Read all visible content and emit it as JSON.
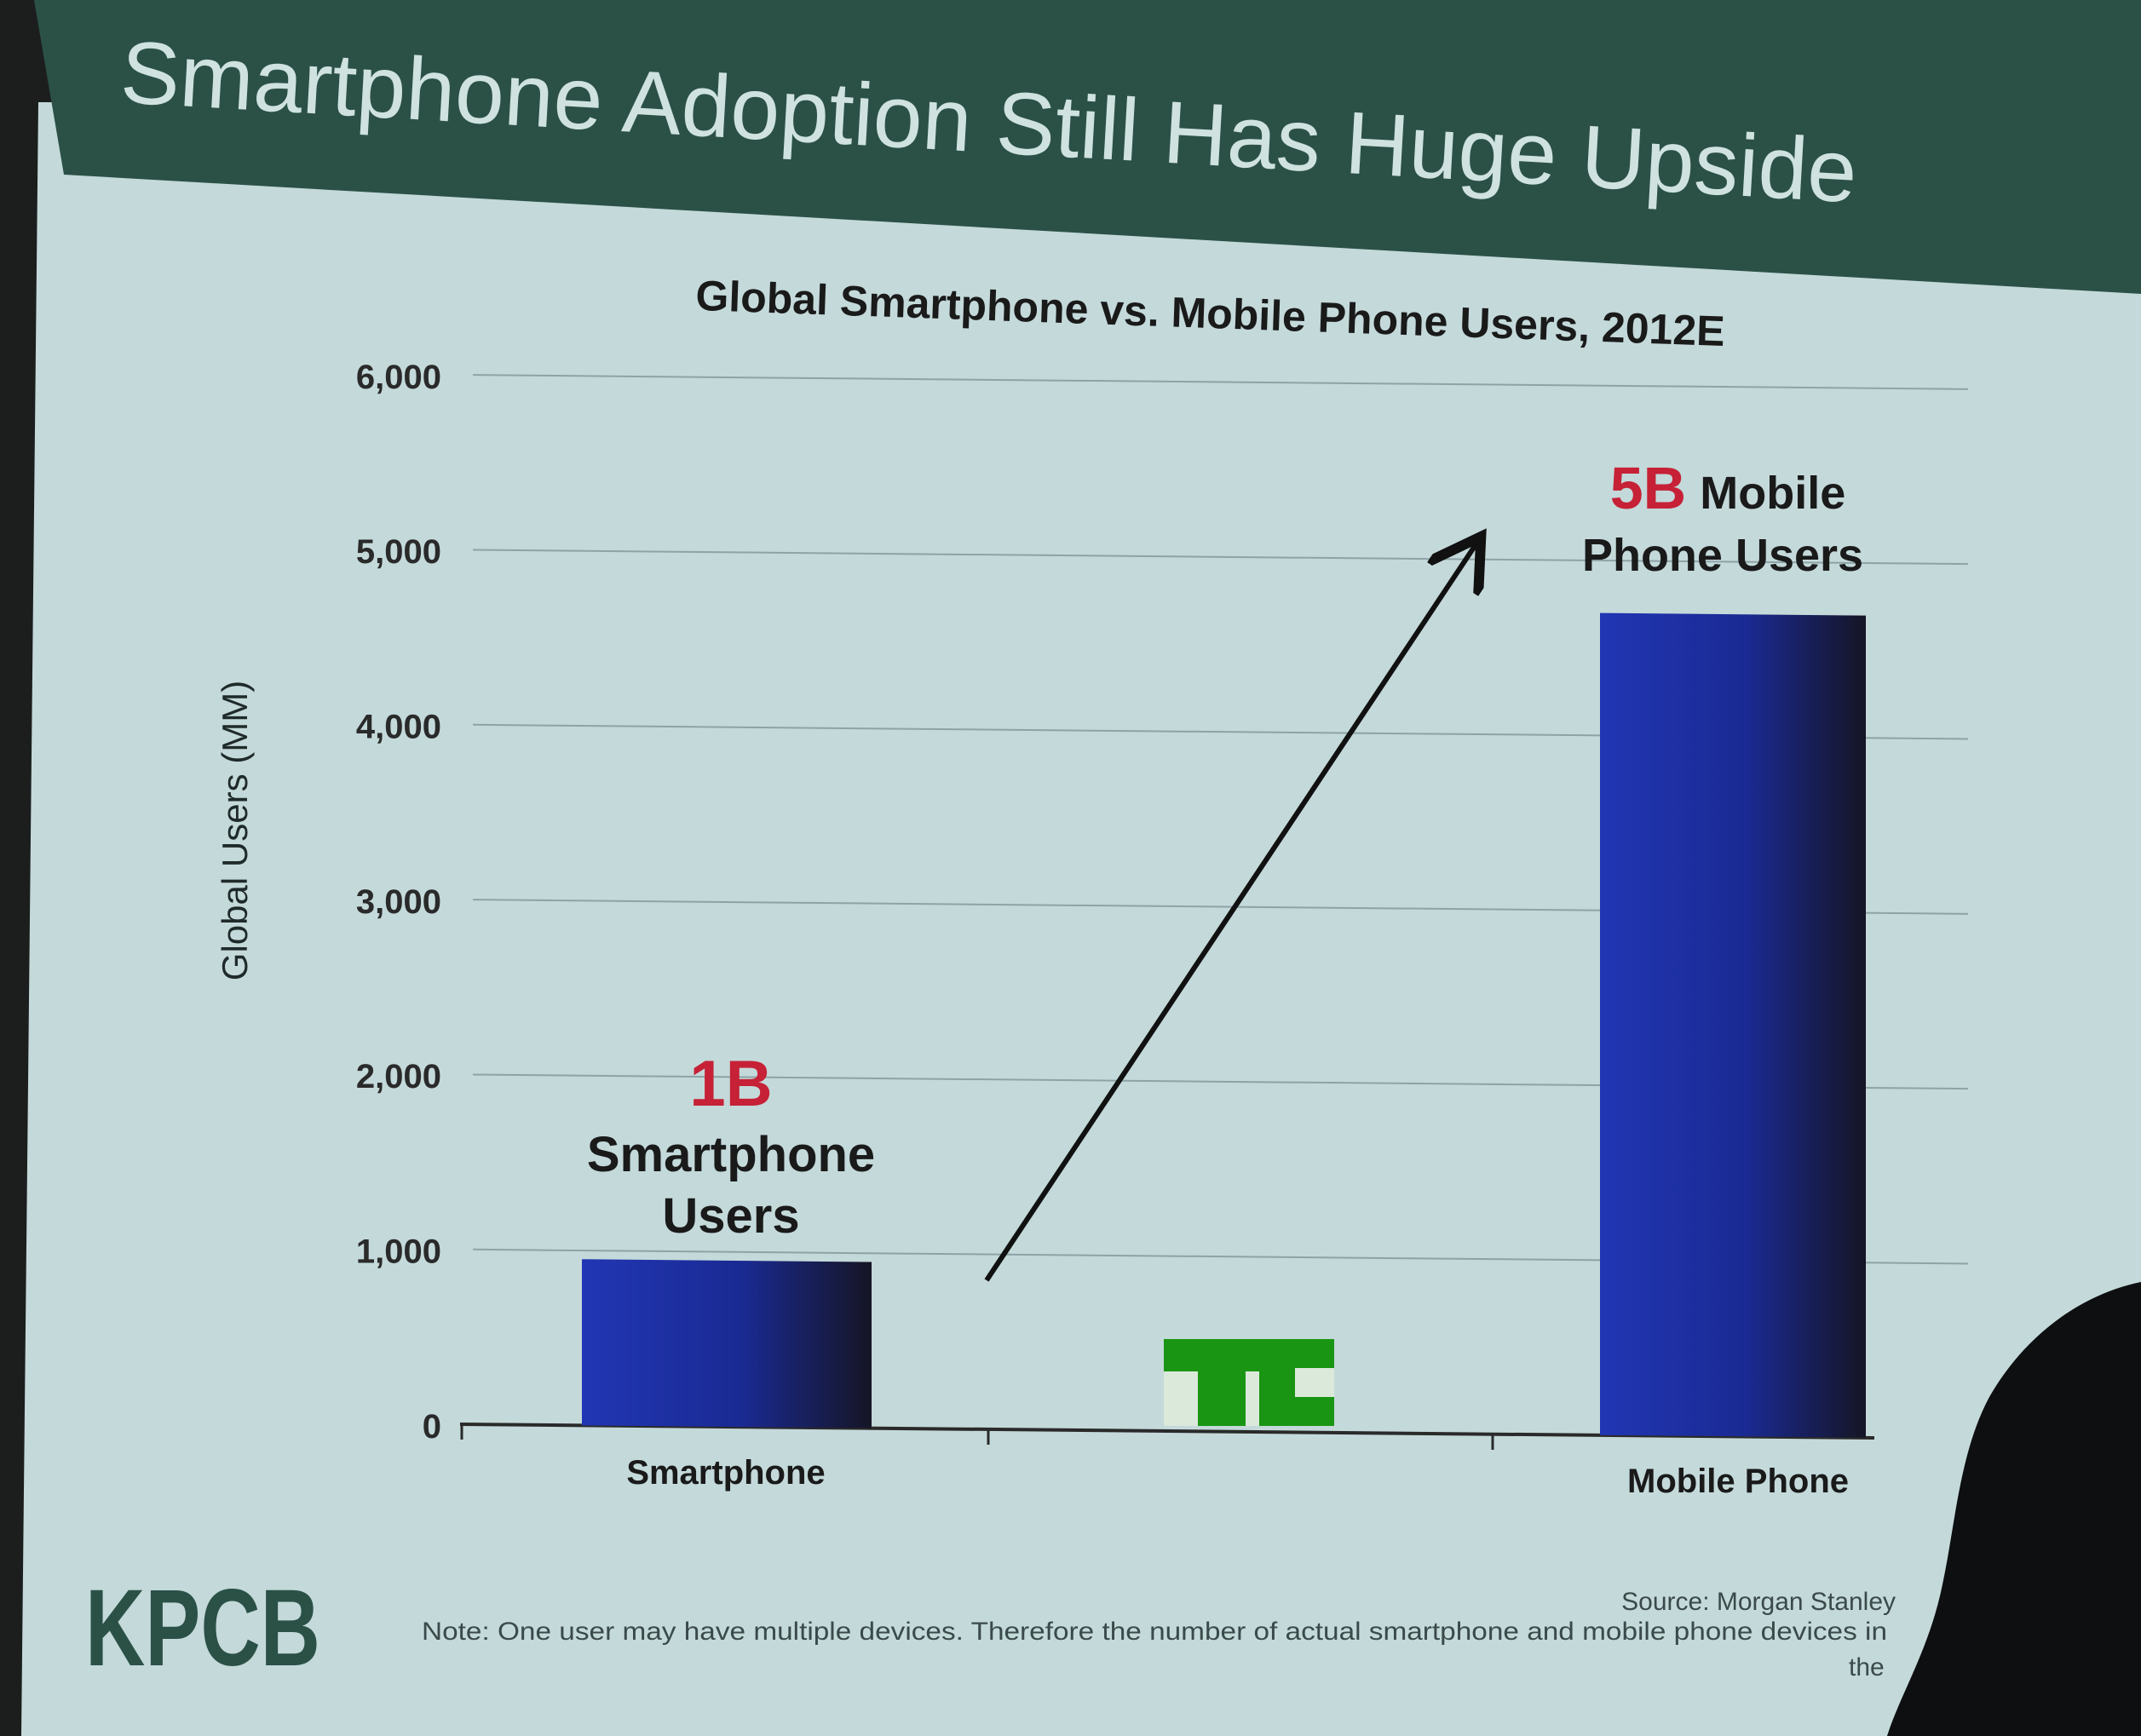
{
  "slide": {
    "title": "Smartphone Adoption Still Has Huge Upside",
    "logo_text": "KPCB",
    "source": "Source: Morgan Stanley",
    "note": "Note: One user may have multiple devices. Therefore the number of actual smartphone and mobile phone devices in",
    "note_tail": "the",
    "watermark_text": "TC"
  },
  "callouts": {
    "smartphone": {
      "value": "1B",
      "line1": "Smartphone",
      "line2": "Users"
    },
    "mobile": {
      "value": "5B",
      "line1": "Mobile",
      "line2": "Phone Users"
    }
  },
  "colors": {
    "header_band": "#2b5147",
    "slide_bg": "#c4d9da",
    "title_text": "#cfe2e0",
    "bar_light": "#2136b4",
    "bar_dark": "#151525",
    "callout_red": "#c62136",
    "logo_green": "#2b5147",
    "grid": "#8fa3a6",
    "arrow": "#111111",
    "watermark_green": "#1c9d14"
  },
  "chart_data": {
    "type": "bar",
    "title": "Global Smartphone vs. Mobile Phone Users, 2012E",
    "xlabel": "",
    "ylabel": "Global Users (MM)",
    "categories": [
      "Smartphone",
      "Mobile Phone"
    ],
    "values": [
      950,
      4700
    ],
    "ylim": [
      0,
      6000
    ],
    "yticks": [
      0,
      1000,
      2000,
      3000,
      4000,
      5000,
      6000
    ],
    "ytick_labels": [
      "0",
      "1,000",
      "2,000",
      "3,000",
      "4,000",
      "5,000",
      "6,000"
    ],
    "grid": true,
    "legend": "none",
    "annotations": [
      {
        "text": "1B Smartphone Users",
        "target": "Smartphone"
      },
      {
        "text": "5B Mobile Phone Users",
        "target": "Mobile Phone"
      }
    ]
  }
}
